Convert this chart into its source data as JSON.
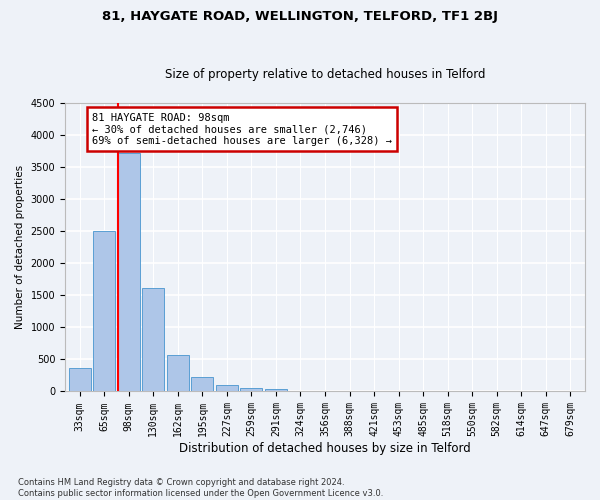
{
  "title1": "81, HAYGATE ROAD, WELLINGTON, TELFORD, TF1 2BJ",
  "title2": "Size of property relative to detached houses in Telford",
  "xlabel": "Distribution of detached houses by size in Telford",
  "ylabel": "Number of detached properties",
  "footnote": "Contains HM Land Registry data © Crown copyright and database right 2024.\nContains public sector information licensed under the Open Government Licence v3.0.",
  "categories": [
    "33sqm",
    "65sqm",
    "98sqm",
    "130sqm",
    "162sqm",
    "195sqm",
    "227sqm",
    "259sqm",
    "291sqm",
    "324sqm",
    "356sqm",
    "388sqm",
    "421sqm",
    "453sqm",
    "485sqm",
    "518sqm",
    "550sqm",
    "582sqm",
    "614sqm",
    "647sqm",
    "679sqm"
  ],
  "values": [
    360,
    2500,
    3720,
    1620,
    575,
    220,
    100,
    60,
    35,
    10,
    5,
    3,
    2,
    1,
    1,
    0,
    0,
    0,
    0,
    0,
    5
  ],
  "bar_color": "#aec6e8",
  "bar_edge_color": "#5a9fd4",
  "red_line_index": 2,
  "annotation_title": "81 HAYGATE ROAD: 98sqm",
  "annotation_line1": "← 30% of detached houses are smaller (2,746)",
  "annotation_line2": "69% of semi-detached houses are larger (6,328) →",
  "ylim": [
    0,
    4500
  ],
  "ylim_display": 4500,
  "yticks": [
    0,
    500,
    1000,
    1500,
    2000,
    2500,
    3000,
    3500,
    4000,
    4500
  ],
  "background_color": "#eef2f8",
  "grid_color": "#ffffff",
  "annotation_box_color": "#ffffff",
  "annotation_box_edge_color": "#cc0000",
  "title1_fontsize": 9.5,
  "title2_fontsize": 8.5,
  "xlabel_fontsize": 8.5,
  "ylabel_fontsize": 7.5,
  "tick_fontsize": 7,
  "footnote_fontsize": 6,
  "bar_width": 0.9
}
